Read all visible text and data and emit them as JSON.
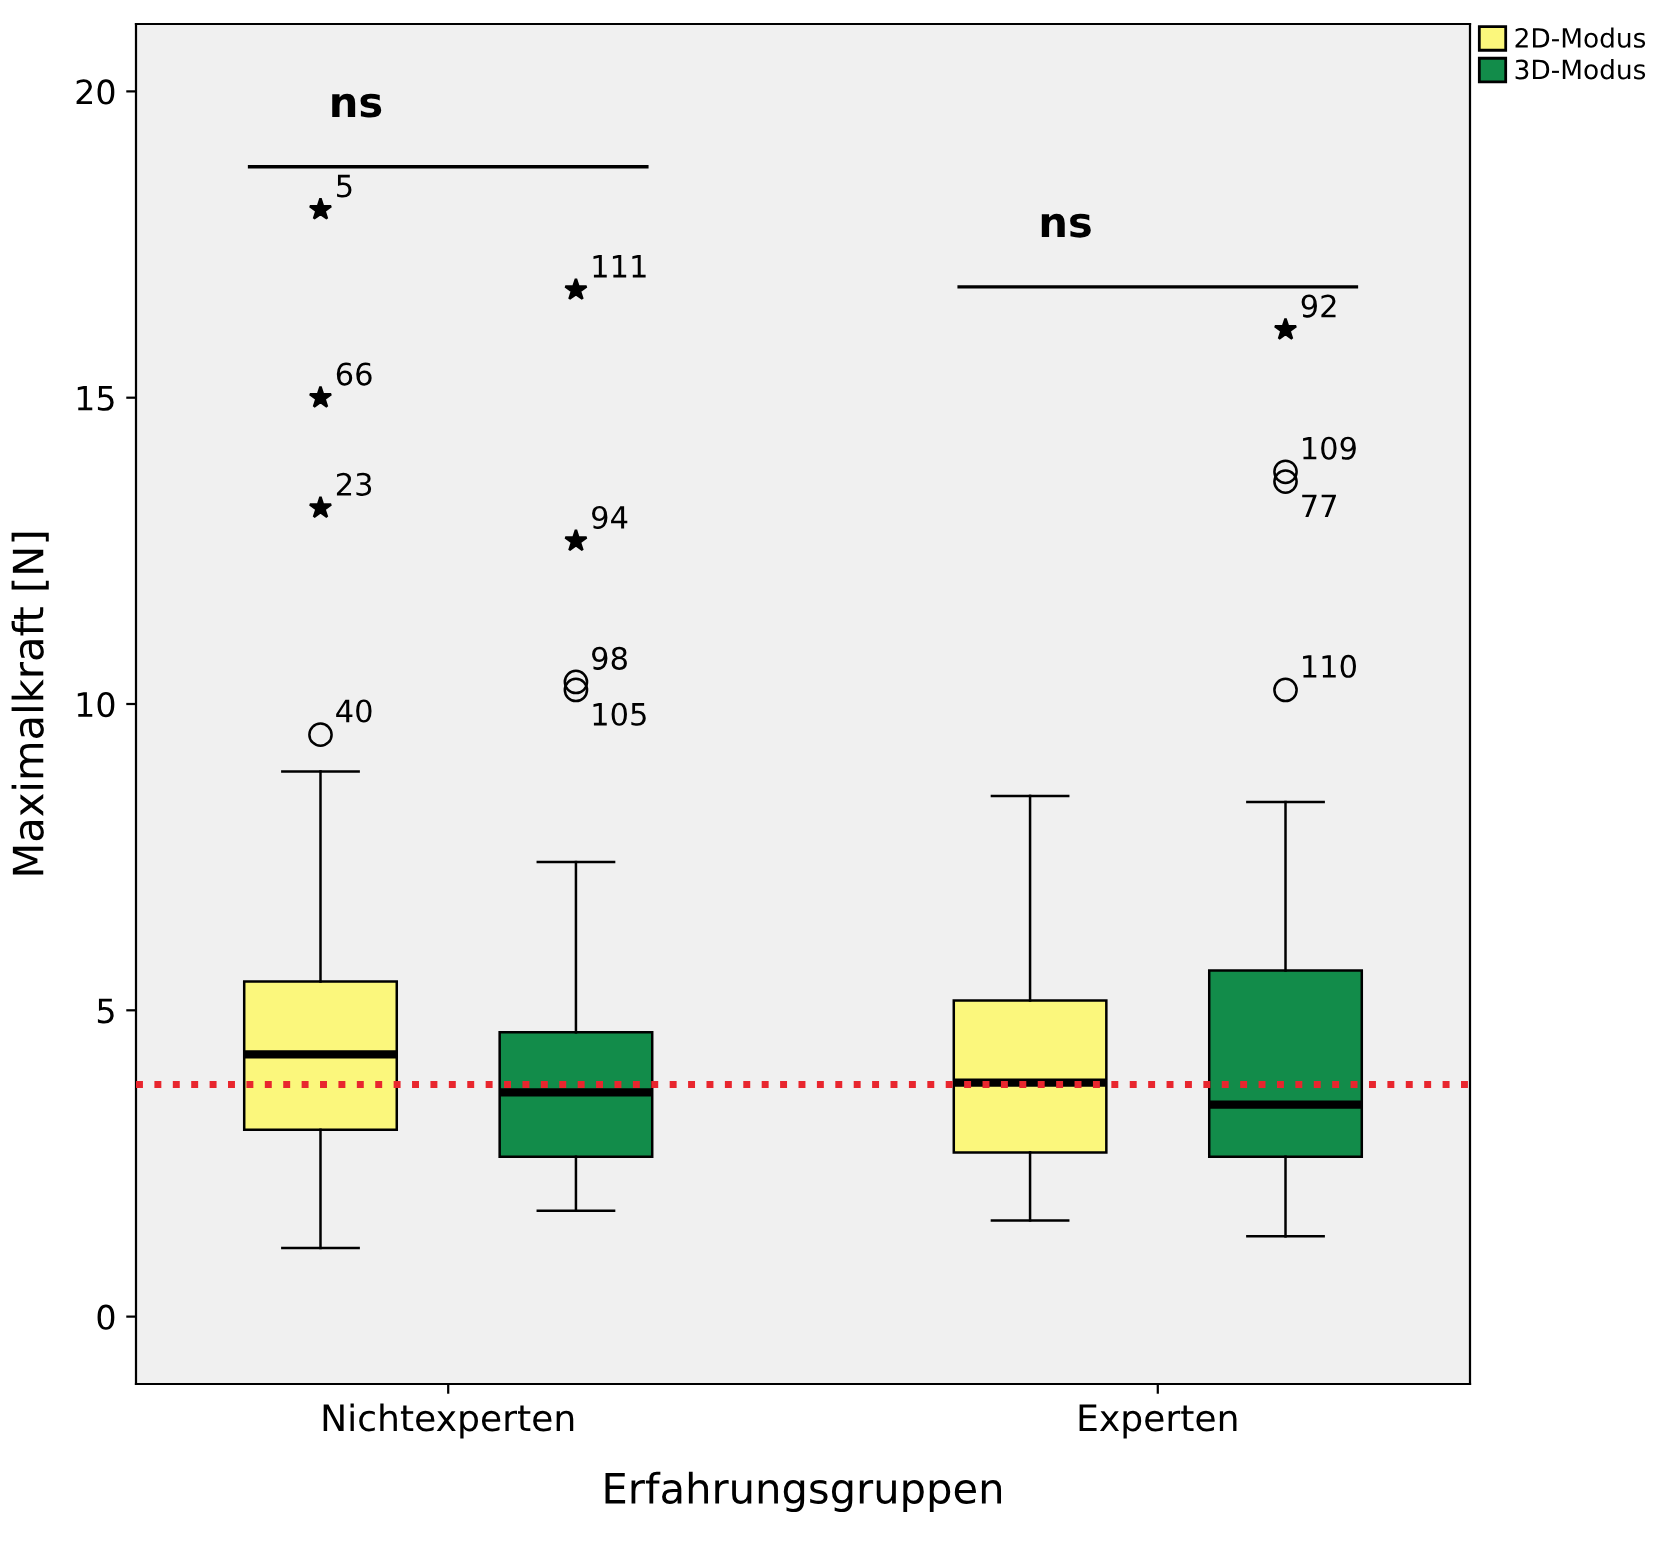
{
  "chart_data": {
    "type": "box",
    "xlabel": "Erfahrungsgruppen",
    "ylabel": "Maximalkraft [N]",
    "categories": [
      "Nichtexperten",
      "Experten"
    ],
    "series": [
      {
        "name": "2D-Modus",
        "color": "#fbf77c",
        "boxes": [
          {
            "low": 1.12,
            "q1": 3.05,
            "median": 4.28,
            "q3": 5.47,
            "high": 8.9,
            "outliers": [
              18.07,
              15.0,
              13.2,
              9.5
            ]
          },
          {
            "low": 1.57,
            "q1": 2.68,
            "median": 3.82,
            "q3": 5.16,
            "high": 8.5
          }
        ]
      },
      {
        "name": "3D-Modus",
        "color": "#128c4a",
        "boxes": [
          {
            "low": 1.73,
            "q1": 2.61,
            "median": 3.66,
            "q3": 4.64,
            "high": 7.42,
            "outliers": [
              16.76,
              12.66,
              10.36,
              10.23
            ]
          },
          {
            "low": 1.31,
            "q1": 2.61,
            "median": 3.46,
            "q3": 5.65,
            "high": 8.4,
            "outliers": [
              16.11,
              13.79,
              13.63,
              10.23
            ]
          }
        ]
      }
    ],
    "ylim": [
      -1.1,
      21.1
    ],
    "yticks": [
      0,
      5,
      10,
      15,
      20
    ],
    "grid": false,
    "legend": "top right",
    "ref_lines": [
      {
        "axis": "y",
        "value": 3.79,
        "color": "#e8262e",
        "line_style": "dotted"
      }
    ],
    "annotations": [
      "ns",
      "ns",
      "5",
      "66",
      "23",
      "40",
      "111",
      "94",
      "98",
      "105",
      "92",
      "109",
      "77",
      "110"
    ]
  }
}
